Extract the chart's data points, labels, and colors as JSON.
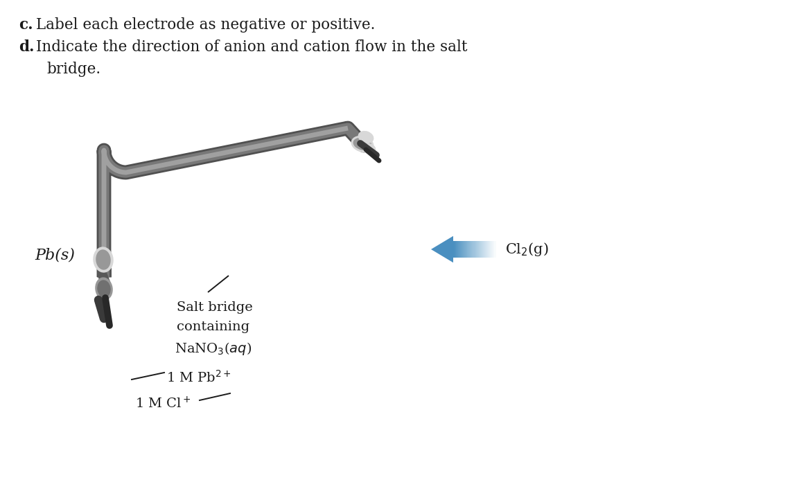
{
  "bg_color": "#ffffff",
  "text_color": "#1a1a1a",
  "wire_color": "#787878",
  "wire_dark": "#505050",
  "wire_light": "#a0a0a0",
  "clip_white": "#d8d8d8",
  "clip_gray": "#989898",
  "clip_dark": "#585858",
  "elec_dark": "#3a3a3a",
  "arrow_blue": "#4a8fc0",
  "arrow_blue_mid": "#7ab8e0",
  "arrow_blue_light": "#c8e4f4",
  "fs_header": 15.5,
  "fs_body": 14.0,
  "fs_chem": 15.0,
  "wire_lw": 11,
  "fig_w": 11.53,
  "fig_h": 6.96,
  "dpi": 100,
  "header_c_bold": "c.",
  "header_c_rest": "  Label each electrode as negative or positive.",
  "header_d_bold": "d.",
  "header_d_rest": " Indicate the direction of anion and cation flow in the salt",
  "header_d_cont": "bridge.",
  "pb_label": "Pb(s)",
  "salt_l1": "Salt bridge",
  "salt_l2": "containing",
  "salt_l3": "NaNO$_3$($aq$)",
  "sol1": "1 M Pb$^{2+}$",
  "sol2": "1 M Cl$^+$",
  "cl2": "Cl$_2$(g)"
}
